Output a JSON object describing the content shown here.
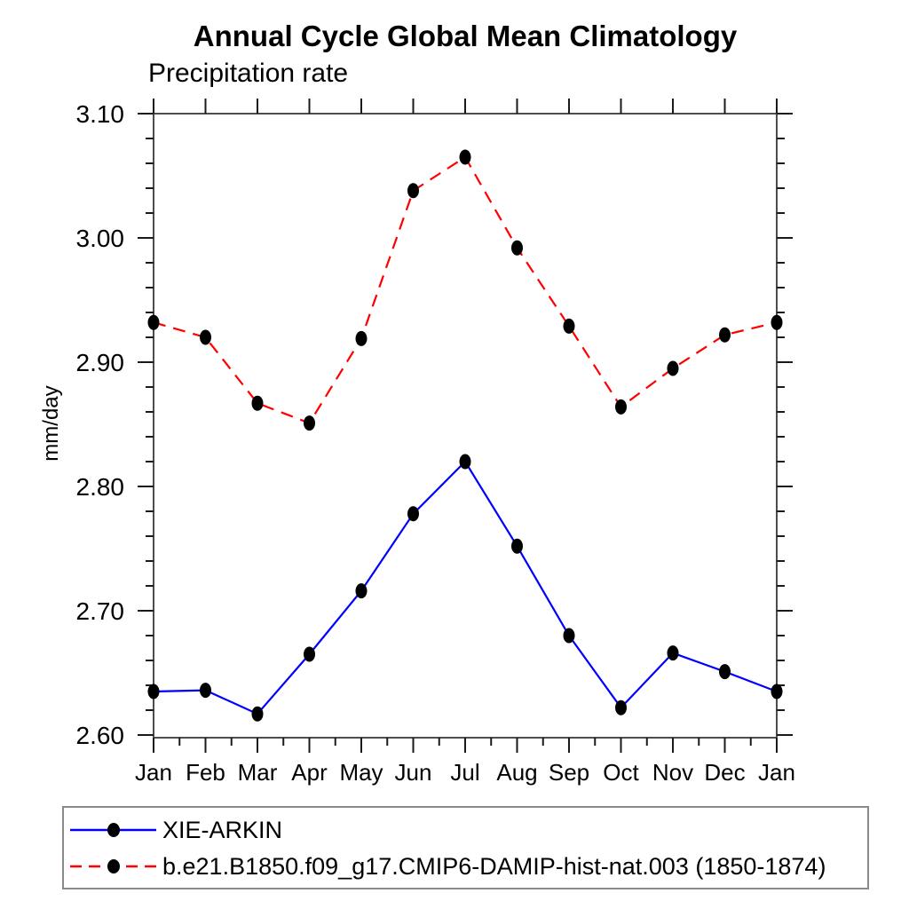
{
  "page": {
    "background": "#ffffff"
  },
  "chart_data": {
    "type": "line",
    "title": "Annual Cycle Global Mean Climatology",
    "subtitle": "Precipitation rate",
    "ylabel": "mm/day",
    "xlabel": "",
    "categories": [
      "Jan",
      "Feb",
      "Mar",
      "Apr",
      "May",
      "Jun",
      "Jul",
      "Aug",
      "Sep",
      "Oct",
      "Nov",
      "Dec",
      "Jan"
    ],
    "y_tick_labels": [
      "2.60",
      "2.70",
      "2.80",
      "2.90",
      "3.00",
      "3.10"
    ],
    "y_major_ticks": [
      2.6,
      2.7,
      2.8,
      2.9,
      3.0,
      3.1
    ],
    "y_minor_step": 0.02,
    "x_minor": "half-month",
    "ylim": [
      2.598,
      3.1
    ],
    "grid": false,
    "tick_direction": "out",
    "legend_position": "bottom-left-box",
    "axis_color": "#4d4d4d",
    "tick_color": "#1a1a1a",
    "marker_color": "#000000",
    "series": [
      {
        "name": "XIE-ARKIN",
        "color": "#0000ff",
        "style": "solid",
        "marker": "filled-circle",
        "values": [
          2.635,
          2.636,
          2.617,
          2.665,
          2.716,
          2.778,
          2.82,
          2.752,
          2.68,
          2.622,
          2.666,
          2.651,
          2.635
        ]
      },
      {
        "name": "b.e21.B1850.f09_g17.CMIP6-DAMIP-hist-nat.003 (1850-1874)",
        "color": "#ff0000",
        "style": "dashed",
        "marker": "filled-circle",
        "values": [
          2.932,
          2.92,
          2.867,
          2.851,
          2.919,
          3.038,
          3.065,
          2.992,
          2.929,
          2.864,
          2.895,
          2.922,
          2.932
        ]
      }
    ]
  }
}
